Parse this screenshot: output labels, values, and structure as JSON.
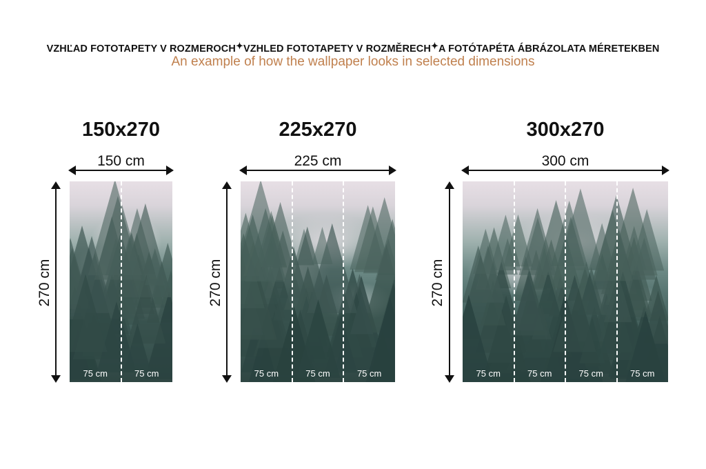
{
  "header": {
    "languages": [
      "VZHĽAD FOTOTAPETY V ROZMEROCH",
      "VZHLED FOTOTAPETY V ROZMĚRECH",
      "A FOTÓTAPÉTA ÁBRÁZOLATA MÉRETEKBEN"
    ],
    "separator_icon": "sparkle-icon",
    "subtitle": "An example of how the wallpaper looks in selected dimensions",
    "subtitle_color": "#c0804e"
  },
  "variants": [
    {
      "title": "150x270",
      "width_label": "150 cm",
      "height_label": "270 cm",
      "strips": [
        "75 cm",
        "75 cm"
      ]
    },
    {
      "title": "225x270",
      "width_label": "225 cm",
      "height_label": "270 cm",
      "strips": [
        "75 cm",
        "75 cm",
        "75 cm"
      ]
    },
    {
      "title": "300x270",
      "width_label": "300 cm",
      "height_label": "270 cm",
      "strips": [
        "75 cm",
        "75 cm",
        "75 cm",
        "75 cm"
      ]
    }
  ]
}
